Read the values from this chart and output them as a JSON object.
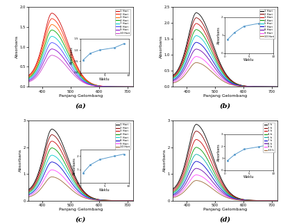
{
  "xlabel": "Panjang Gelombang",
  "ylabel": "Absorbans",
  "inset_xlabel": "Waktu",
  "inset_ylabel": "Absorbans",
  "colors_a": [
    "#cc0000",
    "#ff2200",
    "#ff6600",
    "#00aa00",
    "#00cccc",
    "#4444ff",
    "#8800cc",
    "#cc44cc"
  ],
  "colors_b": [
    "#000000",
    "#880000",
    "#cc0000",
    "#009900",
    "#00cccc",
    "#0000cc",
    "#6600aa",
    "#ff44ff",
    "#996633"
  ],
  "colors_c": [
    "#000000",
    "#880000",
    "#cc0000",
    "#009900",
    "#00cccc",
    "#0000cc",
    "#ff44ff",
    "#996633"
  ],
  "colors_d": [
    "#000000",
    "#880000",
    "#cc0000",
    "#009900",
    "#00aaaa",
    "#0000cc",
    "#6600aa",
    "#ff44ff",
    "#996633"
  ],
  "legend_a": [
    "1 Hari",
    "2 Hari",
    "3 Hari",
    "4 Hari",
    "7 Hari",
    "8 Hari",
    "9 Hari",
    "10 Hari"
  ],
  "legend_b": [
    "1 Hari",
    "2 Hari",
    "3 Hari",
    "4 Hari",
    "5 Hari",
    "7 Hari",
    "8 Hari",
    "9 Hari",
    "10 Hari"
  ],
  "legend_c": [
    "1 Hari",
    "2 Hari",
    "3 Hari",
    "4 Hari",
    "7 Hari",
    "8 Hari",
    "9 Hari",
    "10 Hari"
  ],
  "legend_d": [
    "1 h",
    "2 h",
    "3 h",
    "4 h",
    "5 h",
    "7 h",
    "8 h",
    "9 h",
    "10 h"
  ],
  "amplitudes_a": [
    1.75,
    1.62,
    1.48,
    1.35,
    1.2,
    1.05,
    0.9,
    0.75
  ],
  "amplitudes_b": [
    2.2,
    2.05,
    1.88,
    1.7,
    1.52,
    1.32,
    1.12,
    0.9,
    0.72
  ],
  "amplitudes_c": [
    2.55,
    2.35,
    2.12,
    1.88,
    1.62,
    1.38,
    1.1,
    0.85
  ],
  "amplitudes_d": [
    2.72,
    2.48,
    2.18,
    1.9,
    1.65,
    1.4,
    1.15,
    0.92,
    0.72
  ],
  "inset_x": [
    0.5,
    2,
    4,
    7,
    9
  ],
  "inset_y_a": [
    0.55,
    0.85,
    1.0,
    1.1,
    1.28
  ],
  "inset_y_b": [
    0.75,
    1.15,
    1.5,
    1.65,
    1.8
  ],
  "inset_y_c": [
    0.75,
    1.35,
    1.75,
    2.0,
    2.15
  ],
  "inset_y_d": [
    0.8,
    1.3,
    1.75,
    1.95,
    2.1
  ],
  "ylim_a": [
    0,
    2.0
  ],
  "ylim_b": [
    0,
    2.5
  ],
  "ylim_c": [
    0,
    3.0
  ],
  "ylim_d": [
    0,
    3.0
  ],
  "xlim": [
    350,
    720
  ],
  "peak_wl": 435
}
